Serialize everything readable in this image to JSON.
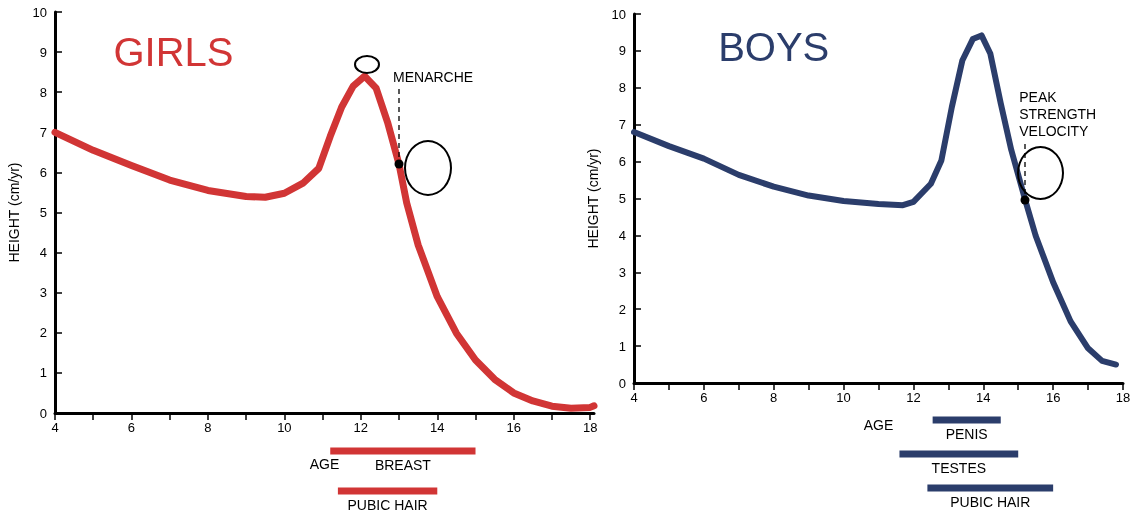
{
  "chart_data": [
    {
      "type": "line",
      "title": "GIRLS",
      "xlabel": "AGE",
      "ylabel": "HEIGHT (cm/yr)",
      "x": [
        4,
        5,
        6,
        7,
        8,
        9,
        9.5,
        10,
        10.5,
        10.9,
        11.2,
        11.5,
        11.8,
        12.1,
        12.4,
        12.7,
        13,
        13.2,
        13.5,
        14,
        14.5,
        15,
        15.5,
        16,
        16.5,
        17,
        17.5,
        18,
        18.1
      ],
      "series": [
        {
          "color": "#d13535",
          "values": [
            7.0,
            6.55,
            6.17,
            5.81,
            5.55,
            5.4,
            5.38,
            5.48,
            5.74,
            6.1,
            6.9,
            7.63,
            8.15,
            8.4,
            8.1,
            7.25,
            6.2,
            5.24,
            4.19,
            2.9,
            1.99,
            1.32,
            0.84,
            0.5,
            0.3,
            0.17,
            0.12,
            0.14,
            0.18
          ]
        }
      ],
      "xlim": [
        4,
        18.1
      ],
      "xticks": [
        4,
        {
          "value": 5,
          "label": null
        },
        6,
        {
          "value": 7,
          "label": null
        },
        8,
        {
          "value": 9,
          "label": null
        },
        10,
        {
          "value": 11,
          "label": null
        },
        12,
        {
          "value": 13,
          "label": null
        },
        14,
        {
          "value": 15,
          "label": null
        },
        16,
        {
          "value": 17,
          "label": null
        },
        18
      ],
      "ylim": [
        0,
        10
      ],
      "yticks": [
        0,
        1,
        2,
        3,
        4,
        5,
        6,
        7,
        8,
        9,
        10
      ],
      "grid": false,
      "marker": "none",
      "line_style": "solid",
      "annotations": [
        {
          "text": "MENARCHE",
          "x": 13,
          "y": 6.2
        }
      ]
    },
    {
      "type": "bar",
      "orientation": "horizontal",
      "categories": [
        "BREAST",
        "PUBIC HAIR"
      ],
      "base": [
        11.2,
        11.4
      ],
      "values": [
        3.8,
        2.6
      ],
      "color": "#d13535",
      "xlim": [
        4,
        18
      ],
      "tick_labels": false,
      "grid": false
    },
    {
      "type": "line",
      "title": "BOYS",
      "xlabel": "AGE",
      "ylabel": "HEIGHT (cm/yr)",
      "x": [
        4,
        5,
        6,
        7,
        8,
        9,
        10,
        11,
        11.7,
        12,
        12.5,
        12.8,
        13.1,
        13.4,
        13.7,
        13.95,
        14.2,
        14.5,
        14.8,
        15.2,
        15.5,
        16,
        16.5,
        17,
        17.4,
        17.8
      ],
      "series": [
        {
          "color": "#2b3d6b",
          "values": [
            6.8,
            6.42,
            6.08,
            5.64,
            5.32,
            5.08,
            4.93,
            4.85,
            4.82,
            4.91,
            5.4,
            6.03,
            7.48,
            8.74,
            9.32,
            9.42,
            8.93,
            7.58,
            6.32,
            4.96,
            3.99,
            2.73,
            1.67,
            0.94,
            0.6,
            0.5
          ]
        }
      ],
      "xlim": [
        4,
        18
      ],
      "xticks": [
        4,
        {
          "value": 5,
          "label": null
        },
        6,
        {
          "value": 7,
          "label": null
        },
        8,
        {
          "value": 9,
          "label": null
        },
        10,
        {
          "value": 11,
          "label": null
        },
        12,
        {
          "value": 13,
          "label": null
        },
        14,
        {
          "value": 15,
          "label": null
        },
        16,
        {
          "value": 17,
          "label": null
        },
        18
      ],
      "ylim": [
        0,
        10
      ],
      "yticks": [
        0,
        1,
        2,
        3,
        4,
        5,
        6,
        7,
        8,
        9,
        10
      ],
      "grid": false,
      "marker": "none",
      "line_style": "solid",
      "annotations": [
        {
          "text": "PEAK\nSTRENGTH\nVELOCITY",
          "x": 15.2,
          "y": 4.96
        }
      ]
    },
    {
      "type": "bar",
      "orientation": "horizontal",
      "categories": [
        "PENIS",
        "TESTES",
        "PUBIC HAIR"
      ],
      "base": [
        12.55,
        11.6,
        12.4
      ],
      "values": [
        1.95,
        3.4,
        3.6
      ],
      "color": "#2b3d6b",
      "xlim": [
        4,
        18
      ],
      "tick_labels": false,
      "grid": false
    }
  ]
}
